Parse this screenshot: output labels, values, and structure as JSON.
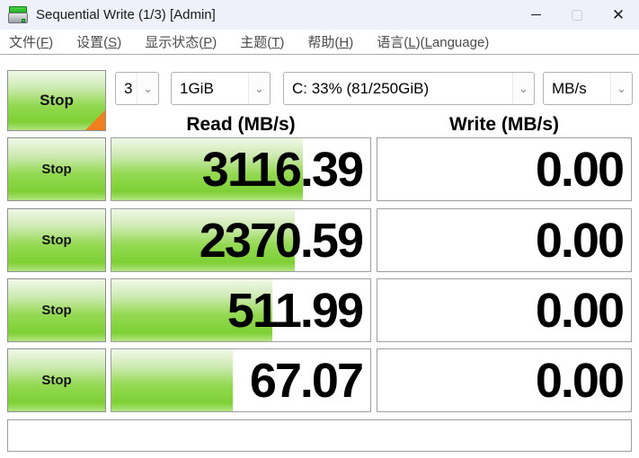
{
  "window": {
    "title": "Sequential Write (1/3) [Admin]"
  },
  "menu": {
    "items": [
      {
        "pre": "文件(",
        "key": "F",
        "post": ")"
      },
      {
        "pre": "设置(",
        "key": "S",
        "post": ")"
      },
      {
        "pre": "显示状态(",
        "key": "P",
        "post": ")"
      },
      {
        "pre": "主题(",
        "key": "T",
        "post": ")"
      },
      {
        "pre": "帮助(",
        "key": "H",
        "post": ")"
      },
      {
        "pre": "语言(",
        "key": "L",
        "mid": ")(",
        "key2": "L",
        "post": "anguage)"
      }
    ]
  },
  "toolbar": {
    "stop_label": "Stop",
    "test_count": "3",
    "test_size": "1GiB",
    "target_drive": "C: 33% (81/250GiB)",
    "unit": "MB/s"
  },
  "table": {
    "read_header": "Read (MB/s)",
    "write_header": "Write (MB/s)",
    "rows": [
      {
        "stop_label": "Stop",
        "read": "3116.39",
        "write": "0.00",
        "read_fill_percent": 74,
        "write_fill_percent": 0
      },
      {
        "stop_label": "Stop",
        "read": "2370.59",
        "write": "0.00",
        "read_fill_percent": 71,
        "write_fill_percent": 0
      },
      {
        "stop_label": "Stop",
        "read": "511.99",
        "write": "0.00",
        "read_fill_percent": 62,
        "write_fill_percent": 0
      },
      {
        "stop_label": "Stop",
        "read": "67.07",
        "write": "0.00",
        "read_fill_percent": 47,
        "write_fill_percent": 0
      }
    ]
  },
  "status_bar": {
    "text": ""
  },
  "icons": {
    "combo_chevron": "⌄",
    "close": "✕"
  },
  "colors": {
    "accent_green": "#7ed035",
    "corner_orange": "#f07f1d",
    "titlebar_bg": "#eef1fa"
  }
}
